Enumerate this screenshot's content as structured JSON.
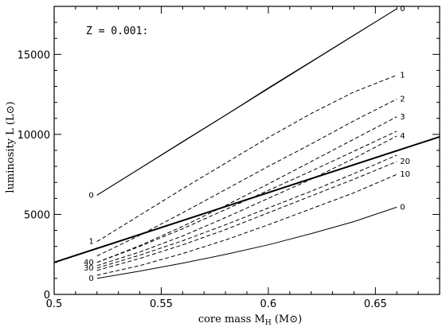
{
  "chart_data": {
    "type": "line",
    "annotation": "Z = 0.001:",
    "xlabel": "core mass  M_H  (M_⊙)",
    "xlabel_parts": {
      "main": "core mass  M",
      "sub": "H",
      "unit": "  (M",
      "unit_sym": "⊙",
      "unit_end": ")"
    },
    "ylabel": "luminosity  L  (L_⊙)",
    "ylabel_parts": {
      "main": "luminosity  L  (L",
      "sym": "⊙",
      "end": ")"
    },
    "xlim": [
      0.5,
      0.68
    ],
    "ylim": [
      0,
      18000
    ],
    "x_ticks": [
      0.5,
      0.55,
      0.6,
      0.65
    ],
    "x_tick_labels": [
      "0.5",
      "0.55",
      "0.6",
      "0.65"
    ],
    "y_ticks": [
      0,
      5000,
      10000,
      15000
    ],
    "y_tick_labels": [
      "0",
      "5000",
      "10000",
      "15000"
    ],
    "series": [
      {
        "label": "0",
        "label_side": "end",
        "style": "solid",
        "width": 1.0,
        "x": [
          0.52,
          0.54,
          0.56,
          0.58,
          0.6,
          0.62,
          0.64,
          0.66
        ],
        "y": [
          6200,
          7870,
          9550,
          11200,
          12900,
          14550,
          16200,
          17850
        ]
      },
      {
        "label": "0",
        "label_side": "start",
        "style": "solid",
        "width": 1.0,
        "x": [
          0.52,
          0.66
        ],
        "y": [
          6200,
          17850
        ]
      },
      {
        "label": "1",
        "label_side": "both",
        "style": "dashed",
        "width": 1.0,
        "x": [
          0.52,
          0.54,
          0.56,
          0.58,
          0.6,
          0.62,
          0.64,
          0.66
        ],
        "y": [
          3300,
          4950,
          6600,
          8200,
          9800,
          11300,
          12650,
          13700
        ]
      },
      {
        "label": "2",
        "label_side": "end",
        "style": "dashed",
        "width": 1.0,
        "x": [
          0.52,
          0.54,
          0.56,
          0.58,
          0.6,
          0.62,
          0.64,
          0.66
        ],
        "y": [
          2400,
          3700,
          5100,
          6550,
          8000,
          9400,
          10850,
          12200
        ]
      },
      {
        "label": "3",
        "label_side": "end",
        "style": "dashed",
        "width": 1.0,
        "x": [
          0.52,
          0.54,
          0.56,
          0.58,
          0.6,
          0.62,
          0.64,
          0.66
        ],
        "y": [
          2000,
          3050,
          4250,
          5550,
          6900,
          8300,
          9700,
          11100
        ]
      },
      {
        "label": "4",
        "label_side": "end",
        "style": "dashed",
        "width": 1.0,
        "x": [
          0.52,
          0.54,
          0.56,
          0.58,
          0.6,
          0.62,
          0.64,
          0.66
        ],
        "y": [
          1800,
          2650,
          3650,
          4800,
          6000,
          7200,
          8500,
          9900
        ]
      },
      {
        "label": "20",
        "label_side": "end",
        "style": "dashed",
        "width": 1.0,
        "x": [
          0.52,
          0.54,
          0.56,
          0.58,
          0.6,
          0.62,
          0.64,
          0.66
        ],
        "y": [
          1500,
          2250,
          3100,
          4050,
          5100,
          6150,
          7200,
          8300
        ]
      },
      {
        "label": "10",
        "label_side": "end",
        "style": "dashed",
        "width": 1.0,
        "x": [
          0.52,
          0.54,
          0.56,
          0.58,
          0.6,
          0.62,
          0.64,
          0.66
        ],
        "y": [
          1200,
          1800,
          2550,
          3400,
          4350,
          5350,
          6350,
          7500
        ]
      },
      {
        "label": "0",
        "label_side": "both",
        "style": "solid",
        "width": 1.0,
        "x": [
          0.52,
          0.54,
          0.56,
          0.58,
          0.6,
          0.62,
          0.64,
          0.66
        ],
        "y": [
          1000,
          1450,
          1950,
          2500,
          3100,
          3800,
          4550,
          5450
        ]
      },
      {
        "label": "",
        "label_side": "none",
        "style": "solid",
        "width": 2.0,
        "x": [
          0.5,
          0.68
        ],
        "y": [
          2000,
          9850
        ]
      },
      {
        "label": "40",
        "label_side": "start",
        "style": "dashed",
        "width": 1.0,
        "x": [
          0.52,
          0.54,
          0.56,
          0.58,
          0.6,
          0.62,
          0.64,
          0.66
        ],
        "y": [
          2000,
          3000,
          4100,
          5300,
          6500,
          7700,
          8950,
          10200
        ]
      },
      {
        "label": "30",
        "label_side": "start",
        "style": "dashed",
        "width": 1.0,
        "x": [
          0.52,
          0.54,
          0.56,
          0.58,
          0.6,
          0.62,
          0.64,
          0.66
        ],
        "y": [
          1650,
          2450,
          3350,
          4350,
          5400,
          6450,
          7550,
          8700
        ]
      }
    ],
    "grid": false,
    "legend": "none"
  }
}
